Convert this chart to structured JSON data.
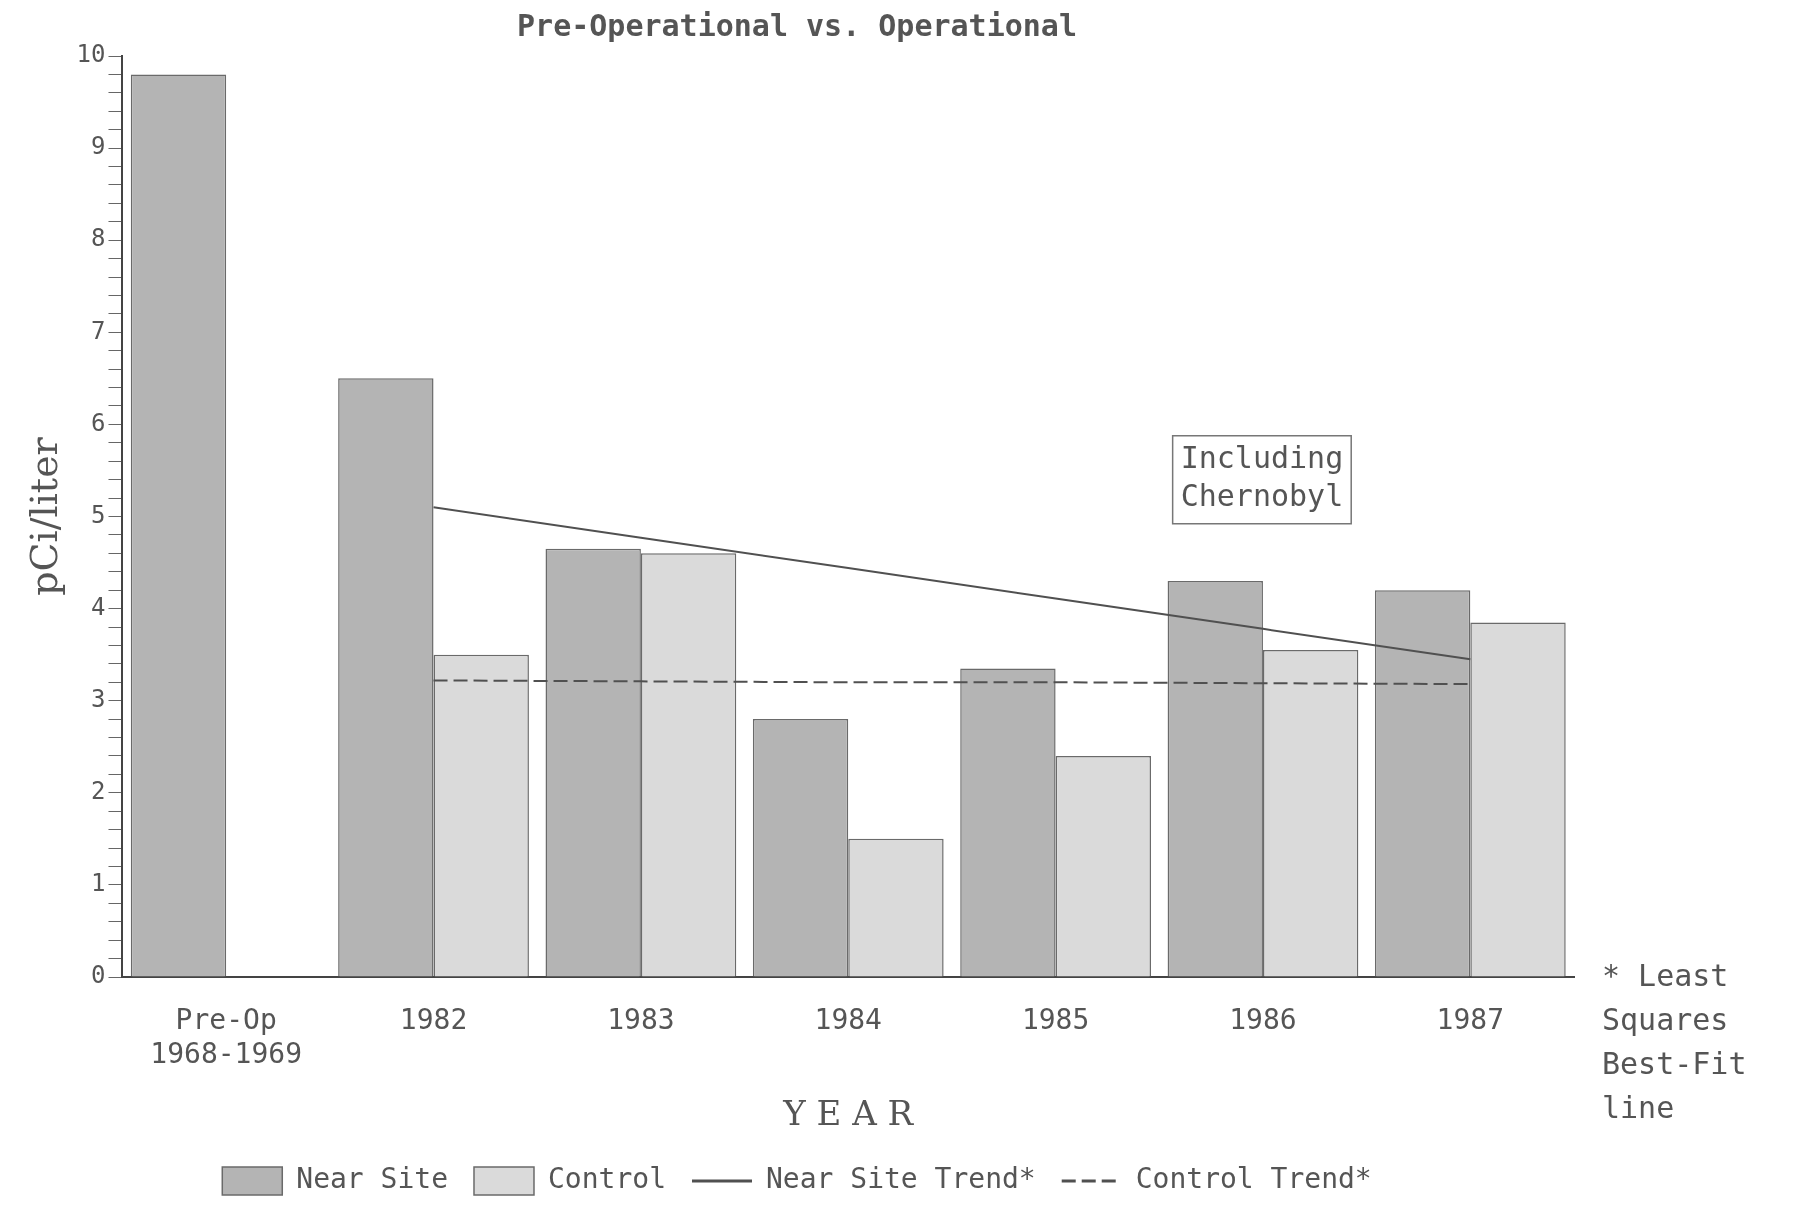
{
  "chart_data": {
    "type": "bar",
    "title": "Pre-Operational vs. Operational",
    "xlabel": "Y E A R",
    "ylabel": "pCi/liter",
    "categories": [
      "Pre-Op 1968-1969",
      "1982",
      "1983",
      "1984",
      "1985",
      "1986",
      "1987"
    ],
    "series": [
      {
        "name": "Near Site",
        "color": "#b4b4b4",
        "values": [
          9.8,
          6.5,
          4.65,
          2.8,
          3.35,
          4.3,
          4.2
        ]
      },
      {
        "name": "Control",
        "color": "#dadada",
        "values": [
          null,
          3.5,
          4.6,
          1.5,
          2.4,
          3.55,
          3.85
        ]
      },
      {
        "name": "Near Site Trend*",
        "type": "line",
        "color": "#505050",
        "line_style": "solid",
        "values": [
          null,
          5.1,
          4.77,
          4.44,
          4.11,
          3.78,
          3.45
        ]
      },
      {
        "name": "Control Trend*",
        "type": "line",
        "color": "#505050",
        "line_style": "dashed",
        "values": [
          null,
          3.22,
          3.21,
          3.2,
          3.2,
          3.19,
          3.18
        ]
      }
    ],
    "ylim": [
      0,
      10
    ],
    "yticks": [
      0,
      {
        "value": 0.2,
        "label": null
      },
      {
        "value": 0.4,
        "label": null
      },
      {
        "value": 0.6,
        "label": null
      },
      {
        "value": 0.8,
        "label": null
      },
      1,
      {
        "value": 1.2,
        "label": null
      },
      {
        "value": 1.4,
        "label": null
      },
      {
        "value": 1.6,
        "label": null
      },
      {
        "value": 1.8,
        "label": null
      },
      2,
      {
        "value": 2.2,
        "label": null
      },
      {
        "value": 2.4,
        "label": null
      },
      {
        "value": 2.6,
        "label": null
      },
      {
        "value": 2.8,
        "label": null
      },
      3,
      {
        "value": 3.2,
        "label": null
      },
      {
        "value": 3.4,
        "label": null
      },
      {
        "value": 3.6,
        "label": null
      },
      {
        "value": 3.8,
        "label": null
      },
      4,
      {
        "value": 4.2,
        "label": null
      },
      {
        "value": 4.4,
        "label": null
      },
      {
        "value": 4.6,
        "label": null
      },
      {
        "value": 4.8,
        "label": null
      },
      5,
      {
        "value": 5.2,
        "label": null
      },
      {
        "value": 5.4,
        "label": null
      },
      {
        "value": 5.6,
        "label": null
      },
      {
        "value": 5.8,
        "label": null
      },
      6,
      {
        "value": 6.2,
        "label": null
      },
      {
        "value": 6.4,
        "label": null
      },
      {
        "value": 6.6,
        "label": null
      },
      {
        "value": 6.8,
        "label": null
      },
      7,
      {
        "value": 7.2,
        "label": null
      },
      {
        "value": 7.4,
        "label": null
      },
      {
        "value": 7.6,
        "label": null
      },
      {
        "value": 7.8,
        "label": null
      },
      8,
      {
        "value": 8.2,
        "label": null
      },
      {
        "value": 8.4,
        "label": null
      },
      {
        "value": 8.6,
        "label": null
      },
      {
        "value": 8.8,
        "label": null
      },
      9,
      {
        "value": 9.2,
        "label": null
      },
      {
        "value": 9.4,
        "label": null
      },
      {
        "value": 9.6,
        "label": null
      },
      {
        "value": 9.8,
        "label": null
      },
      10
    ],
    "grid": false,
    "legend": "bottom",
    "marker": "none",
    "annotations": [
      "Including Chernobyl",
      "* Least Squares Best-Fit line"
    ]
  }
}
